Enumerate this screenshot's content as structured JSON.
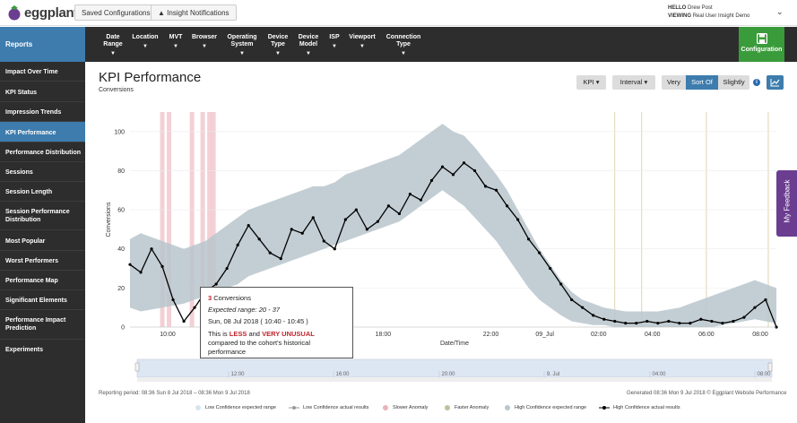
{
  "header": {
    "logo_text": "eggplant",
    "saved_configurations": "Saved Configurations",
    "insight_notifications": "Insight Notifications",
    "user_hello_label": "HELLO",
    "user_name": "Drew Post",
    "user_viewing_label": "VIEWING",
    "user_viewing_value": "Real User Insight Demo"
  },
  "nav": {
    "reports": "Reports",
    "items": [
      "Date Range",
      "Location",
      "MVT",
      "Browser",
      "Operating System",
      "Device Type",
      "Device Model",
      "ISP",
      "Viewport",
      "Connection Type"
    ],
    "configuration": "Configuration"
  },
  "sidebar": {
    "items": [
      "Impact Over Time",
      "KPI Status",
      "Impression Trends",
      "KPI Performance",
      "Performance Distribution",
      "Sessions",
      "Session Length",
      "Session Performance Distribution",
      "Most Popular",
      "Worst Performers",
      "Performance Map",
      "Significant Elements",
      "Performance Impact Prediction",
      "Experiments"
    ],
    "active": "KPI Performance"
  },
  "page": {
    "title": "KPI Performance",
    "subtitle": "Conversions",
    "kpi_dropdown": "KPI",
    "interval_dropdown": "Interval",
    "sensitivity": [
      "Very",
      "Sort Of",
      "Slightly"
    ],
    "sensitivity_selected": "Sort Of",
    "feedback": "My Feedback"
  },
  "tooltip": {
    "value": "3",
    "metric": "Conversions",
    "expected_label": "Expected range:",
    "expected_range": "20 - 37",
    "date": "Sun, 08 Jul 2018 ( 10:40 - 10:45 )",
    "text_pre": "This is",
    "less": "LESS",
    "and": "and",
    "very_unusual": "VERY UNUSUAL",
    "text_post": "compared to the cohort's historical performance"
  },
  "footer": {
    "reporting_period": "Reporting period: 08:36 Sun 8 Jul 2018 – 08:36 Mon 9 Jul 2018",
    "generated": "Generated 08:36 Mon 9 Jul 2018 © Eggplant Website Performance"
  },
  "legend": [
    {
      "label": "Low Confidence expected range",
      "color": "#d6e6ef"
    },
    {
      "label": "Low Confidence actual results",
      "color": "#9a9a9a"
    },
    {
      "label": "Slower Anomaly",
      "color": "#e9b3bb"
    },
    {
      "label": "Faster Anomaly",
      "color": "#b5c79a"
    },
    {
      "label": "High Confidence expected range",
      "color": "#b9c6cc"
    },
    {
      "label": "High Confidence actual results",
      "color": "#000000"
    }
  ],
  "navigator_labels": [
    "12:00",
    "16:00",
    "20:00",
    "9. Jul",
    "04:00",
    "08:00"
  ],
  "chart_data": {
    "type": "line",
    "xlabel": "Date/Time",
    "ylabel": "Conversions",
    "ylim": [
      0,
      110
    ],
    "y_ticks": [
      0,
      20,
      40,
      60,
      80,
      100
    ],
    "x_ticks": [
      "10:00",
      "14:00",
      "18:00",
      "22:00",
      "09_Jul",
      "02:00",
      "04:00",
      "06:00",
      "08:00"
    ],
    "x_range_hours": [
      8.6,
      32.6
    ],
    "series": [
      {
        "name": "High Confidence actual results",
        "x_hours": [
          8.6,
          9.0,
          9.4,
          9.8,
          10.2,
          10.6,
          11.0,
          11.4,
          11.8,
          12.2,
          12.6,
          13.0,
          13.4,
          13.8,
          14.2,
          14.6,
          15.0,
          15.4,
          15.8,
          16.2,
          16.6,
          17.0,
          17.4,
          17.8,
          18.2,
          18.6,
          19.0,
          19.4,
          19.8,
          20.2,
          20.6,
          21.0,
          21.4,
          21.8,
          22.2,
          22.6,
          23.0,
          23.4,
          23.8,
          24.2,
          24.6,
          25.0,
          25.4,
          25.8,
          26.2,
          26.6,
          27.0,
          27.4,
          27.8,
          28.2,
          28.6,
          29.0,
          29.4,
          29.8,
          30.2,
          30.6,
          31.0,
          31.4,
          31.8,
          32.2,
          32.6
        ],
        "values": [
          32,
          28,
          40,
          31,
          14,
          3,
          10,
          18,
          22,
          30,
          42,
          52,
          45,
          38,
          35,
          50,
          48,
          56,
          44,
          40,
          55,
          60,
          50,
          54,
          62,
          58,
          68,
          65,
          75,
          82,
          78,
          84,
          80,
          72,
          70,
          62,
          55,
          45,
          38,
          30,
          22,
          14,
          10,
          6,
          4,
          3,
          2,
          2,
          3,
          2,
          3,
          2,
          2,
          4,
          3,
          2,
          3,
          5,
          10,
          14,
          0
        ]
      }
    ],
    "expected_upper": [
      45,
      48,
      46,
      44,
      42,
      40,
      42,
      44,
      48,
      52,
      56,
      60,
      62,
      64,
      66,
      68,
      70,
      72,
      72,
      74,
      78,
      80,
      82,
      84,
      86,
      88,
      92,
      96,
      100,
      104,
      100,
      98,
      92,
      85,
      78,
      70,
      60,
      50,
      40,
      32,
      24,
      18,
      14,
      12,
      10,
      9,
      8,
      8,
      8,
      8,
      9,
      10,
      12,
      14,
      16,
      18,
      20,
      22,
      24,
      22,
      20
    ],
    "expected_lower": [
      10,
      8,
      9,
      10,
      11,
      12,
      14,
      16,
      18,
      20,
      22,
      26,
      28,
      30,
      32,
      34,
      36,
      38,
      40,
      42,
      44,
      46,
      48,
      50,
      52,
      54,
      58,
      62,
      66,
      70,
      66,
      62,
      56,
      50,
      44,
      36,
      28,
      20,
      14,
      10,
      6,
      3,
      2,
      1,
      1,
      0,
      0,
      0,
      0,
      0,
      0,
      0,
      0,
      0,
      0,
      1,
      2,
      3,
      4,
      3,
      2
    ],
    "slower_anomaly_hours": [
      9.8,
      10.05,
      10.9,
      11.3,
      11.55,
      11.7
    ],
    "faster_anomaly_hours": [
      26.6,
      27.6,
      30.0,
      32.3
    ]
  }
}
